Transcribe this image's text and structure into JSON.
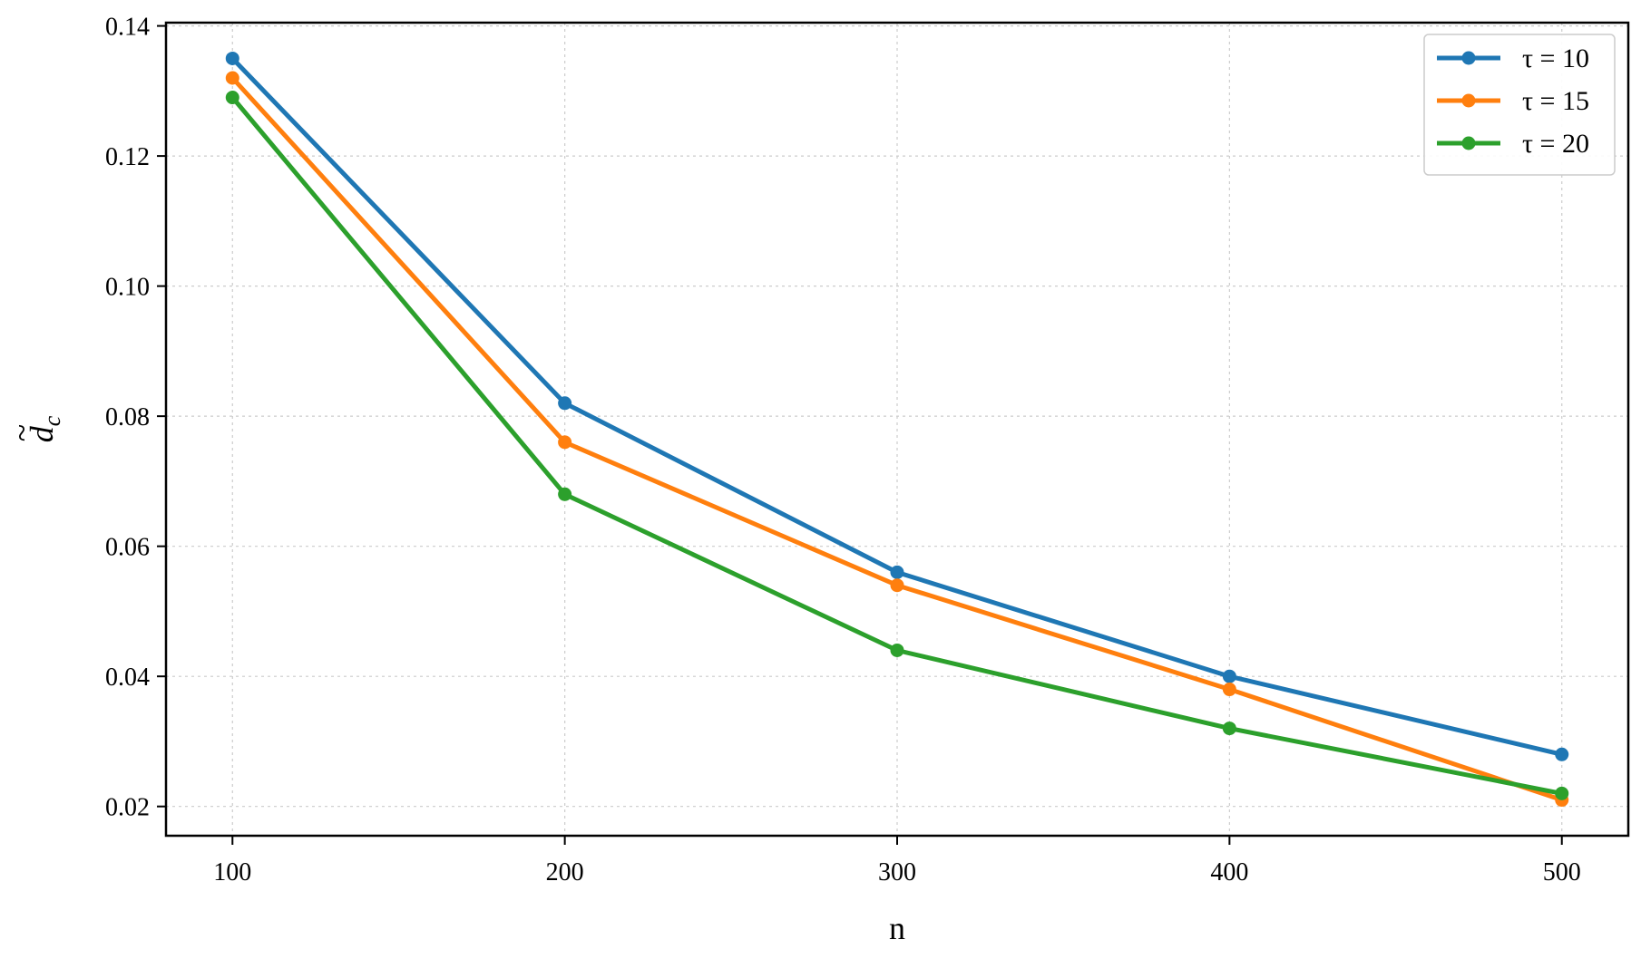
{
  "chart_data": {
    "type": "line",
    "x": [
      100,
      200,
      300,
      400,
      500
    ],
    "xlabel": "n",
    "ylabel_base": "d",
    "ylabel_subscript": "c",
    "ylabel_accent": "~",
    "xlim": [
      80,
      520
    ],
    "ylim": [
      0.0155,
      0.1405
    ],
    "xticks": [
      100,
      200,
      300,
      400,
      500
    ],
    "xtick_labels": [
      "100",
      "200",
      "300",
      "400",
      "500"
    ],
    "yticks": [
      0.02,
      0.04,
      0.06,
      0.08,
      0.1,
      0.12,
      0.14
    ],
    "ytick_labels": [
      "0.02",
      "0.04",
      "0.06",
      "0.08",
      "0.10",
      "0.12",
      "0.14"
    ],
    "grid": true,
    "legend_position": "top-right",
    "series": [
      {
        "name": "τ = 10",
        "color": "#1f77b4",
        "values": [
          0.135,
          0.082,
          0.056,
          0.04,
          0.028
        ]
      },
      {
        "name": "τ = 15",
        "color": "#ff7f0e",
        "values": [
          0.132,
          0.076,
          0.054,
          0.038,
          0.021
        ]
      },
      {
        "name": "τ = 20",
        "color": "#2ca02c",
        "values": [
          0.129,
          0.068,
          0.044,
          0.032,
          0.022
        ]
      }
    ]
  }
}
